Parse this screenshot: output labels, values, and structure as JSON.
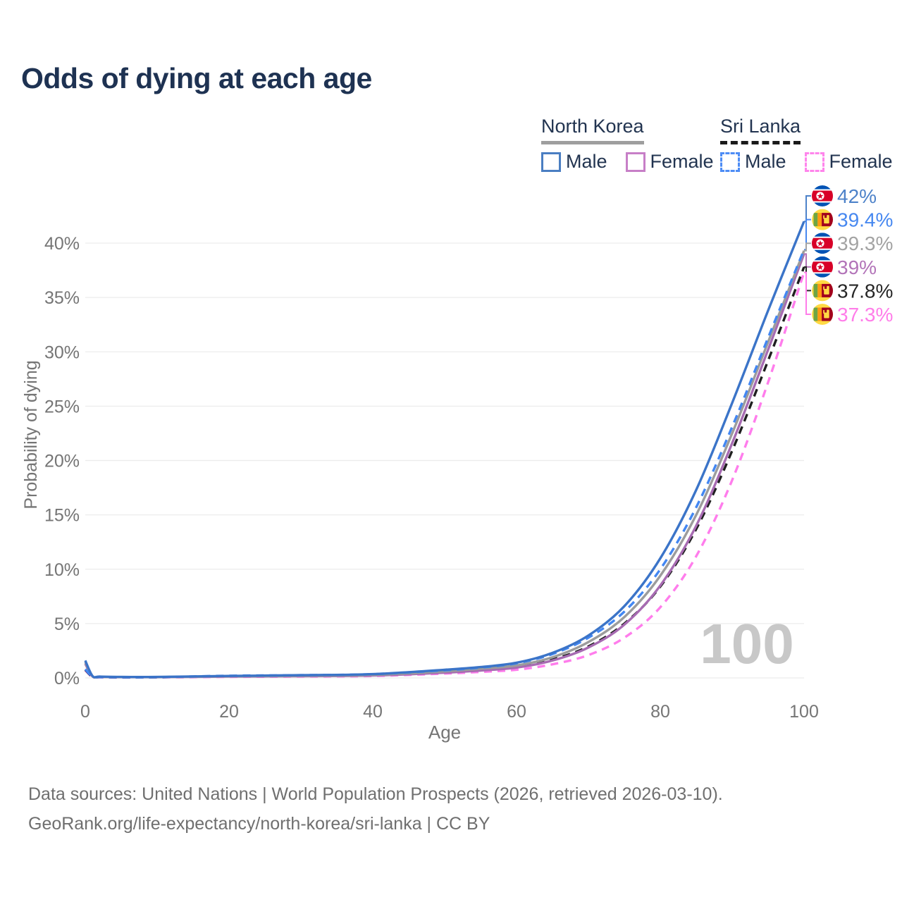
{
  "title": {
    "text": "Odds of dying at each age",
    "color": "#1e3252"
  },
  "legend": {
    "position": "top-right",
    "groups": [
      {
        "name": "North Korea",
        "underline_style": "solid",
        "underline_color": "#9e9e9e",
        "items": [
          {
            "label": "Male",
            "color": "#4a7ec2",
            "dashed": false
          },
          {
            "label": "Female",
            "color": "#c77fc7",
            "dashed": false
          }
        ]
      },
      {
        "name": "Sri Lanka",
        "underline_style": "dashed",
        "underline_color": "#1a1a1a",
        "items": [
          {
            "label": "Male",
            "color": "#4d8cf5",
            "dashed": true
          },
          {
            "label": "Female",
            "color": "#ff85ec",
            "dashed": true
          }
        ]
      }
    ]
  },
  "chart_data": {
    "type": "line",
    "title": "Odds of dying at each age",
    "xlabel": "Age",
    "ylabel": "Probability of dying",
    "xlim": [
      0,
      100
    ],
    "ylim": [
      0,
      44
    ],
    "grid": true,
    "watermark": {
      "text": "100",
      "color": "#c8c8c8"
    },
    "x_ticks": [
      {
        "value": 0,
        "label": "0"
      },
      {
        "value": 20,
        "label": "20"
      },
      {
        "value": 40,
        "label": "40"
      },
      {
        "value": 60,
        "label": "60"
      },
      {
        "value": 80,
        "label": "80"
      },
      {
        "value": 100,
        "label": "100"
      }
    ],
    "y_ticks": [
      {
        "value": 0,
        "label": "0%"
      },
      {
        "value": 5,
        "label": "5%"
      },
      {
        "value": 10,
        "label": "10%"
      },
      {
        "value": 15,
        "label": "15%"
      },
      {
        "value": 20,
        "label": "20%"
      },
      {
        "value": 25,
        "label": "25%"
      },
      {
        "value": 30,
        "label": "30%"
      },
      {
        "value": 35,
        "label": "35%"
      },
      {
        "value": 40,
        "label": "40%"
      }
    ],
    "x": [
      0,
      1,
      2,
      5,
      10,
      20,
      30,
      40,
      50,
      55,
      60,
      65,
      70,
      75,
      80,
      85,
      90,
      95,
      100
    ],
    "series": [
      {
        "name": "North Korea Male",
        "country": "North Korea",
        "sex": "Male",
        "flag": "kp",
        "color": "#3b74c8",
        "dashed": false,
        "end_label": "42%",
        "label_color": "#4d82c9",
        "values": [
          1.6,
          0.18,
          0.12,
          0.09,
          0.09,
          0.18,
          0.25,
          0.35,
          0.75,
          1.0,
          1.4,
          2.3,
          3.9,
          6.6,
          11.0,
          17.3,
          25.3,
          33.8,
          42.0
        ]
      },
      {
        "name": "Sri Lanka Male",
        "country": "Sri Lanka",
        "sex": "Male",
        "flag": "lk",
        "color": "#4387f2",
        "dashed": true,
        "end_label": "39.4%",
        "label_color": "#4788f0",
        "values": [
          0.8,
          0.12,
          0.08,
          0.06,
          0.07,
          0.2,
          0.25,
          0.35,
          0.7,
          0.95,
          1.35,
          2.2,
          3.7,
          6.1,
          10.0,
          15.7,
          23.1,
          31.3,
          39.4
        ]
      },
      {
        "name": "North Korea Both sexes",
        "country": "North Korea",
        "sex": "Both",
        "flag": "kp",
        "color": "#9c9c9c",
        "dashed": false,
        "end_label": "39.3%",
        "label_color": "#a3a3a3",
        "values": [
          1.45,
          0.16,
          0.1,
          0.08,
          0.08,
          0.15,
          0.2,
          0.28,
          0.6,
          0.85,
          1.15,
          1.9,
          3.3,
          5.6,
          9.4,
          15.0,
          22.5,
          30.9,
          39.3
        ]
      },
      {
        "name": "North Korea Female",
        "country": "North Korea",
        "sex": "Female",
        "flag": "kp",
        "color": "#a76bb2",
        "dashed": false,
        "end_label": "39%",
        "label_color": "#b273b8",
        "values": [
          1.3,
          0.14,
          0.09,
          0.07,
          0.07,
          0.12,
          0.16,
          0.22,
          0.48,
          0.68,
          0.95,
          1.6,
          2.8,
          4.9,
          8.5,
          14.0,
          21.6,
          30.2,
          39.0
        ]
      },
      {
        "name": "Sri Lanka Both sexes",
        "country": "Sri Lanka",
        "sex": "Both",
        "flag": "lk",
        "color": "#1f1f1f",
        "dashed": true,
        "end_label": "37.8%",
        "label_color": "#262626",
        "values": [
          0.75,
          0.1,
          0.07,
          0.05,
          0.06,
          0.15,
          0.19,
          0.27,
          0.55,
          0.75,
          1.05,
          1.7,
          2.9,
          5.0,
          8.4,
          13.7,
          20.9,
          29.2,
          37.8
        ]
      },
      {
        "name": "Sri Lanka Female",
        "country": "Sri Lanka",
        "sex": "Female",
        "flag": "lk",
        "color": "#ff7dec",
        "dashed": true,
        "end_label": "37.3%",
        "label_color": "#ff7de9",
        "values": [
          0.7,
          0.09,
          0.06,
          0.04,
          0.05,
          0.1,
          0.13,
          0.18,
          0.4,
          0.55,
          0.75,
          1.25,
          2.1,
          3.7,
          6.5,
          11.2,
          18.2,
          27.2,
          37.3
        ]
      }
    ],
    "flag_colors": {
      "kp": {
        "blue": "#0052b4",
        "red": "#d80027",
        "white": "#ffffff"
      },
      "lk": {
        "gold": "#ffda44",
        "green": "#6da544",
        "orange": "#ff9811",
        "maroon": "#a2001d"
      }
    },
    "axis_text_color": "#757575",
    "grid_color": "#ececec"
  },
  "footer": {
    "line1": "Data sources: United Nations | World Population Prospects (2026, retrieved 2026-03-10).",
    "line2": "GeoRank.org/life-expectancy/north-korea/sri-lanka | CC BY"
  }
}
